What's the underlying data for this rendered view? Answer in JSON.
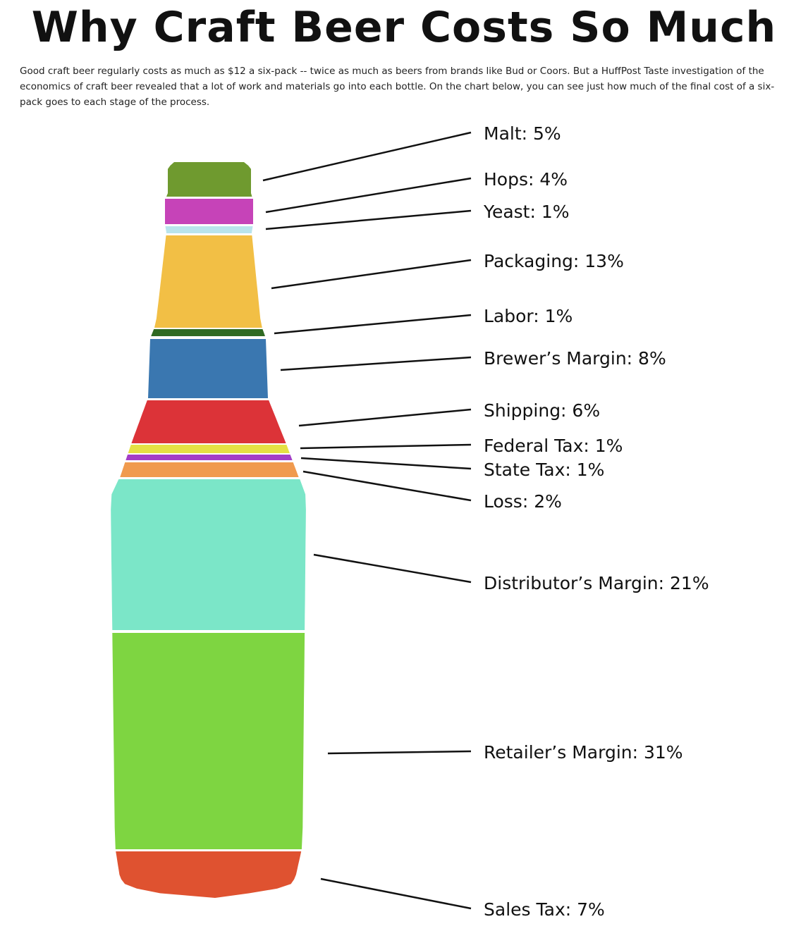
{
  "title": "Why Craft Beer Costs So Much",
  "subtitle": "Good craft beer regularly costs as much as $12 a six-pack -- twice as much as beers from brands like Bud or Coors. But a HuffPost Taste investigation of the economics of craft beer revealed that a lot of work and materials go into each bottle. On the chart below, you can see just how much of the final cost of a six-pack goes to each stage of the process.",
  "chart_data": {
    "type": "bar",
    "categories": [
      "Malt",
      "Hops",
      "Yeast",
      "Packaging",
      "Labor",
      "Brewer’s Margin",
      "Shipping",
      "Federal Tax",
      "State Tax",
      "Loss",
      "Distributor’s Margin",
      "Retailer’s Margin",
      "Sales Tax"
    ],
    "values": [
      5,
      4,
      1,
      13,
      1,
      8,
      6,
      1,
      1,
      2,
      21,
      31,
      7
    ],
    "unit": "%",
    "labels": [
      "Malt: 5%",
      "Hops: 4%",
      "Yeast: 1%",
      "Packaging: 13%",
      "Labor: 1%",
      "Brewer’s Margin: 8%",
      "Shipping: 6%",
      "Federal Tax: 1%",
      "State Tax: 1%",
      "Loss: 2%",
      "Distributor’s Margin: 21%",
      "Retailer’s Margin: 31%",
      "Sales Tax: 7%"
    ],
    "colors": [
      "#6f9a2f",
      "#c643b8",
      "#b9e4ec",
      "#f2bf45",
      "#2f6a22",
      "#3a77b0",
      "#dc3338",
      "#e5e044",
      "#a33ec7",
      "#f09a4e",
      "#7be6c8",
      "#7ed541",
      "#df5230"
    ]
  }
}
